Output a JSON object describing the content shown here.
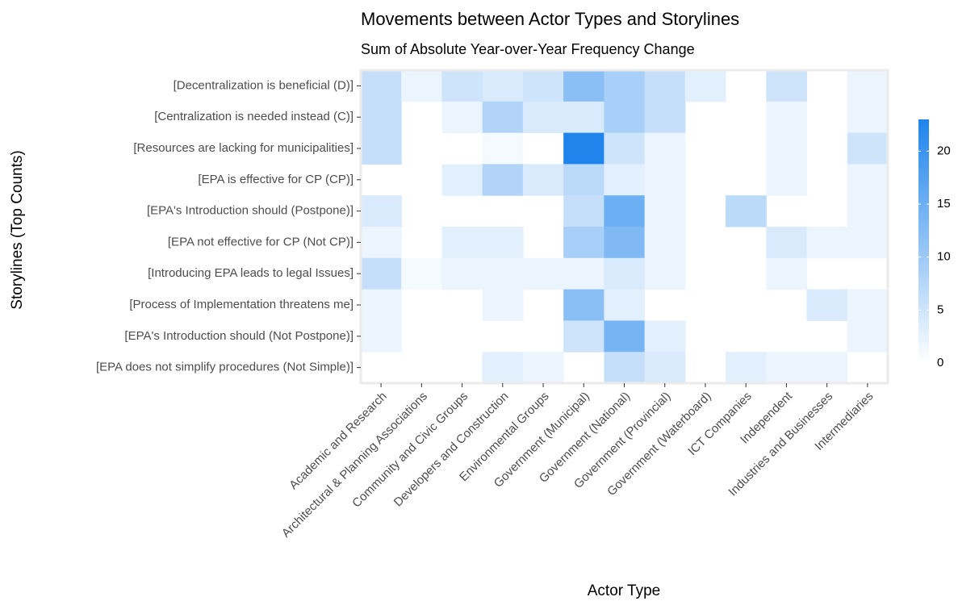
{
  "chart_data": {
    "type": "heatmap",
    "title": "Movements between Actor Types and Storylines",
    "subtitle": "Sum of Absolute Year-over-Year Frequency Change",
    "x_label": "Actor Type",
    "y_label": "Storylines (Top Counts)",
    "x_categories": [
      "Academic and Research",
      "Architectural & Planning Associations",
      "Community and Civic Groups",
      "Developers and Construction",
      "Environmental Groups",
      "Government (Municipal)",
      "Government (National)",
      "Government (Provincial)",
      "Government (Waterboard)",
      "ICT Companies",
      "Independent",
      "Industries and Businesses",
      "Intermediaries"
    ],
    "y_categories": [
      "[Decentralization is beneficial (D)]",
      "[Centralization is needed instead (C)]",
      "[Resources are lacking for municipalities]",
      "[EPA is effective for CP (CP)]",
      "[EPA's Introduction should (Postpone)]",
      "[EPA not effective for CP (Not CP)]",
      "[Introducing EPA leads to legal Issues]",
      "[Process of Implementation threatens me]",
      "[EPA's Introduction should (Not Postpone)]",
      "[EPA does not simplify procedures (Not Simple)]"
    ],
    "values": [
      [
        6,
        2,
        5,
        4,
        5,
        12,
        9,
        6,
        3,
        null,
        5,
        null,
        2
      ],
      [
        6,
        null,
        2,
        8,
        4,
        4,
        9,
        6,
        null,
        null,
        2,
        null,
        2
      ],
      [
        6,
        null,
        null,
        1,
        null,
        23,
        5,
        2,
        null,
        null,
        2,
        null,
        5
      ],
      [
        null,
        null,
        3,
        8,
        4,
        7,
        3,
        2,
        null,
        null,
        2,
        null,
        2
      ],
      [
        4,
        null,
        null,
        null,
        null,
        6,
        15,
        2,
        null,
        7,
        null,
        null,
        2
      ],
      [
        2,
        null,
        3,
        3,
        null,
        9,
        13,
        2,
        null,
        null,
        4,
        2,
        2
      ],
      [
        6,
        1,
        2,
        2,
        2,
        2,
        4,
        2,
        null,
        null,
        2,
        null,
        null
      ],
      [
        2,
        null,
        null,
        2,
        null,
        12,
        3,
        null,
        null,
        null,
        null,
        4,
        2
      ],
      [
        2,
        null,
        null,
        null,
        null,
        5,
        14,
        3,
        null,
        null,
        null,
        null,
        2
      ],
      [
        null,
        null,
        null,
        3,
        2,
        null,
        6,
        4,
        null,
        3,
        2,
        2,
        null
      ]
    ],
    "zlim": [
      0,
      23
    ],
    "zticks": [
      0,
      5,
      10,
      15,
      20
    ],
    "color_low": "#ffffff",
    "color_high": "#1f84ec"
  }
}
